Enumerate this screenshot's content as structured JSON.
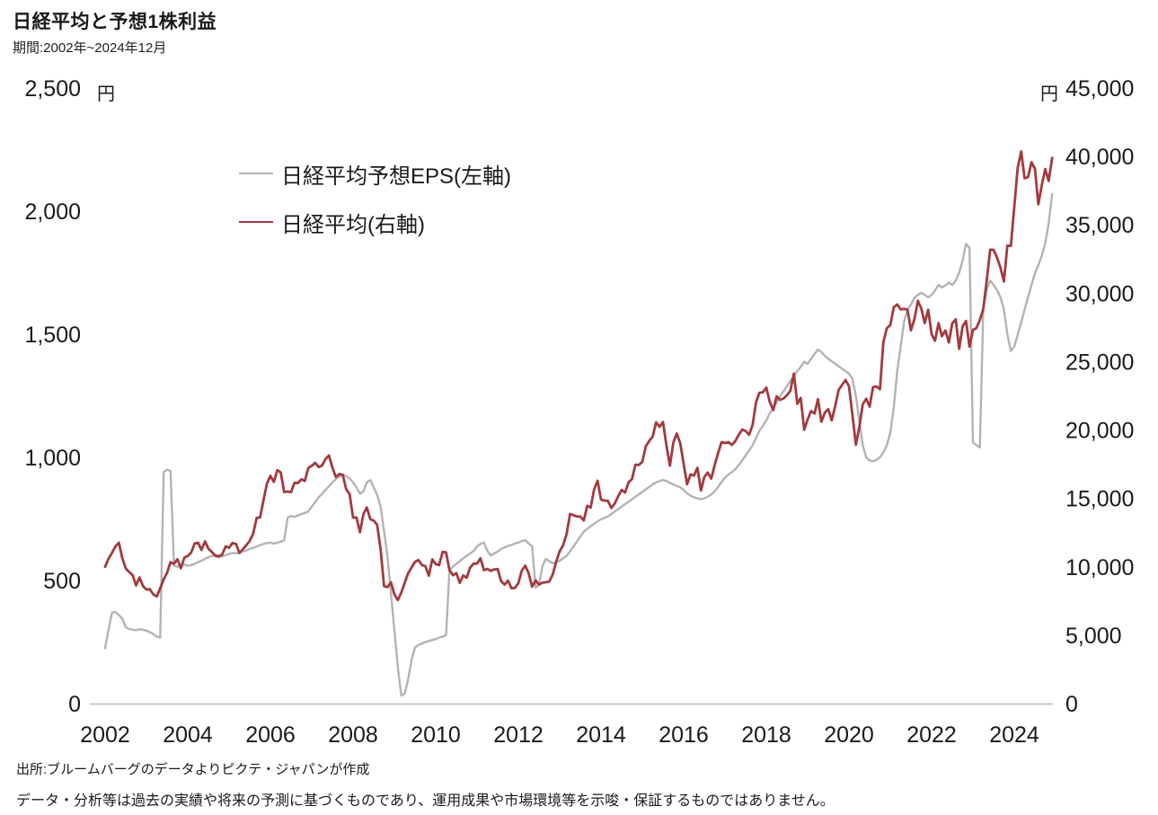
{
  "header": {
    "title": "日経平均と予想1株利益",
    "subtitle": "期間:2002年~2024年12月"
  },
  "footer": {
    "source": "出所:ブルームバーグのデータよりピクテ・ジャパンが作成",
    "disclaimer": "データ・分析等は過去の実績や将来の予測に基づくものであり、運用成果や市場環境等を示唆・保証するものではありません。"
  },
  "chart_data": {
    "type": "line",
    "title": "日経平均と予想1株利益",
    "period": "期間:2002年~2024年12月",
    "grid": false,
    "legend_position": "top-left-inside",
    "x_domain": [
      2002,
      2025
    ],
    "x_ticks": [
      {
        "value": 2002,
        "label": "2002"
      },
      {
        "value": 2004,
        "label": "2004"
      },
      {
        "value": 2006,
        "label": "2006"
      },
      {
        "value": 2008,
        "label": "2008"
      },
      {
        "value": 2010,
        "label": "2010"
      },
      {
        "value": 2012,
        "label": "2012"
      },
      {
        "value": 2014,
        "label": "2014"
      },
      {
        "value": 2016,
        "label": "2016"
      },
      {
        "value": 2018,
        "label": "2018"
      },
      {
        "value": 2020,
        "label": "2020"
      },
      {
        "value": 2022,
        "label": "2022"
      },
      {
        "value": 2024,
        "label": "2024"
      }
    ],
    "left_axis": {
      "unit": "円",
      "min": 0,
      "max": 2500,
      "ticks": [
        {
          "value": 2500,
          "label": "2,500"
        },
        {
          "value": 2000,
          "label": "2,000"
        },
        {
          "value": 1500,
          "label": "1,500"
        },
        {
          "value": 1000,
          "label": "1,000"
        },
        {
          "value": 500,
          "label": "500"
        },
        {
          "value": 0,
          "label": "0"
        }
      ]
    },
    "right_axis": {
      "unit": "円",
      "min": 0,
      "max": 45000,
      "ticks": [
        {
          "value": 45000,
          "label": "45,000"
        },
        {
          "value": 40000,
          "label": "40,000"
        },
        {
          "value": 35000,
          "label": "35,000"
        },
        {
          "value": 30000,
          "label": "30,000"
        },
        {
          "value": 25000,
          "label": "25,000"
        },
        {
          "value": 20000,
          "label": "20,000"
        },
        {
          "value": 15000,
          "label": "15,000"
        },
        {
          "value": 10000,
          "label": "10,000"
        },
        {
          "value": 5000,
          "label": "5,000"
        },
        {
          "value": 0,
          "label": "0"
        }
      ]
    },
    "series": [
      {
        "name": "日経平均予想EPS(左軸)",
        "axis": "left",
        "color": "#b3b3b3",
        "width": 2.4,
        "start": "2002-01",
        "interval": "monthly",
        "values": [
          225,
          300,
          370,
          372,
          360,
          345,
          310,
          303,
          300,
          298,
          302,
          300,
          296,
          290,
          282,
          272,
          268,
          940,
          950,
          945,
          560,
          556,
          560,
          565,
          560,
          562,
          568,
          575,
          580,
          588,
          595,
          600,
          598,
          594,
          598,
          603,
          608,
          612,
          610,
          614,
          618,
          622,
          628,
          632,
          638,
          643,
          648,
          652,
          654,
          650,
          653,
          658,
          662,
          755,
          762,
          758,
          764,
          770,
          774,
          780,
          800,
          818,
          838,
          852,
          868,
          882,
          898,
          912,
          922,
          930,
          924,
          914,
          898,
          878,
          852,
          862,
          898,
          908,
          878,
          848,
          798,
          700,
          598,
          448,
          298,
          148,
          32,
          40,
          98,
          178,
          228,
          238,
          244,
          250,
          254,
          258,
          262,
          268,
          272,
          278,
          540,
          556,
          568,
          578,
          590,
          600,
          610,
          620,
          638,
          648,
          654,
          620,
          602,
          610,
          618,
          628,
          634,
          640,
          644,
          650,
          654,
          660,
          664,
          650,
          640,
          470,
          482,
          558,
          588,
          578,
          570,
          574,
          580,
          590,
          600,
          618,
          638,
          658,
          678,
          698,
          710,
          720,
          730,
          740,
          748,
          754,
          760,
          770,
          780,
          790,
          800,
          810,
          820,
          830,
          840,
          850,
          860,
          870,
          880,
          890,
          898,
          904,
          908,
          904,
          896,
          890,
          884,
          878,
          868,
          854,
          844,
          838,
          834,
          830,
          834,
          840,
          850,
          862,
          880,
          900,
          918,
          930,
          940,
          952,
          968,
          988,
          1008,
          1028,
          1048,
          1078,
          1108,
          1128,
          1150,
          1178,
          1200,
          1222,
          1248,
          1268,
          1290,
          1310,
          1330,
          1350,
          1368,
          1388,
          1380,
          1400,
          1420,
          1438,
          1428,
          1412,
          1400,
          1390,
          1380,
          1370,
          1360,
          1350,
          1340,
          1320,
          1250,
          1150,
          1050,
          1000,
          988,
          984,
          990,
          1000,
          1020,
          1050,
          1100,
          1200,
          1350,
          1450,
          1550,
          1600,
          1620,
          1648,
          1660,
          1668,
          1660,
          1650,
          1660,
          1678,
          1700,
          1690,
          1698,
          1710,
          1700,
          1718,
          1750,
          1800,
          1868,
          1850,
          1060,
          1050,
          1040,
          1600,
          1680,
          1718,
          1700,
          1680,
          1650,
          1600,
          1500,
          1432,
          1450,
          1498,
          1548,
          1600,
          1650,
          1700,
          1748,
          1780,
          1820,
          1870,
          1950,
          2070
        ]
      },
      {
        "name": "日経平均(右軸)",
        "axis": "right",
        "color": "#a23a3e",
        "width": 2.8,
        "start": "2002-01",
        "interval": "monthly",
        "values": [
          9997,
          10588,
          11025,
          11493,
          11764,
          10622,
          9878,
          9619,
          9383,
          8640,
          9216,
          8579,
          8339,
          8363,
          7973,
          7831,
          8425,
          9083,
          9563,
          10343,
          10219,
          10559,
          9895,
          10677,
          10784,
          11041,
          11715,
          11762,
          11236,
          11859,
          11326,
          11082,
          10824,
          10771,
          10899,
          11489,
          11388,
          11741,
          11669,
          11009,
          11277,
          11584,
          11900,
          12414,
          13574,
          13606,
          14872,
          16111,
          16649,
          16205,
          17060,
          16906,
          15467,
          15505,
          15457,
          16141,
          16128,
          16399,
          16274,
          17226,
          17383,
          17604,
          17288,
          17400,
          17876,
          18138,
          17249,
          16569,
          16786,
          16738,
          15681,
          15308,
          13592,
          13603,
          12526,
          13850,
          14339,
          13481,
          13377,
          13073,
          11260,
          8577,
          8512,
          8860,
          7994,
          7568,
          8110,
          8828,
          9523,
          9958,
          10357,
          10493,
          10133,
          10035,
          9346,
          10546,
          10198,
          10126,
          11090,
          11057,
          9769,
          9383,
          9537,
          8824,
          9369,
          9202,
          9937,
          10229,
          10238,
          10624,
          9755,
          9850,
          9694,
          9816,
          9833,
          8955,
          8700,
          8988,
          8435,
          8455,
          8803,
          9723,
          10084,
          9521,
          8543,
          9007,
          8695,
          8840,
          8870,
          8928,
          9446,
          10395,
          11139,
          11559,
          12398,
          13861,
          13775,
          13677,
          13668,
          13389,
          14456,
          14328,
          15662,
          16291,
          14915,
          14841,
          14828,
          14304,
          14632,
          15162,
          15621,
          15425,
          16174,
          16414,
          17460,
          17451,
          17674,
          18798,
          19207,
          19520,
          20563,
          20236,
          20585,
          18890,
          17388,
          19083,
          19747,
          19034,
          17518,
          16027,
          16759,
          16666,
          17235,
          15576,
          16569,
          16887,
          16450,
          17425,
          18308,
          19114,
          19041,
          19119,
          18909,
          19197,
          19651,
          20033,
          19925,
          19646,
          20356,
          22012,
          22725,
          22765,
          23098,
          22068,
          21454,
          22468,
          22202,
          22305,
          22554,
          22865,
          24120,
          21920,
          22351,
          20015,
          20773,
          21385,
          21206,
          22259,
          20601,
          21276,
          21522,
          20704,
          21756,
          22927,
          23294,
          23657,
          23205,
          21143,
          18917,
          20194,
          21878,
          22288,
          21710,
          23140,
          23185,
          22977,
          26434,
          27444,
          27663,
          28966,
          29179,
          28813,
          28860,
          28792,
          27284,
          28090,
          29453,
          28893,
          27822,
          28792,
          27002,
          26527,
          27821,
          26848,
          27280,
          26393,
          27802,
          28092,
          25937,
          27587,
          27969,
          26095,
          27327,
          27446,
          28041,
          28856,
          30888,
          33189,
          33172,
          32619,
          31858,
          30859,
          33487,
          33464,
          36287,
          39166,
          40369,
          38406,
          38488,
          39583,
          39102,
          36500,
          37920,
          39081,
          38208,
          39895
        ]
      }
    ]
  }
}
